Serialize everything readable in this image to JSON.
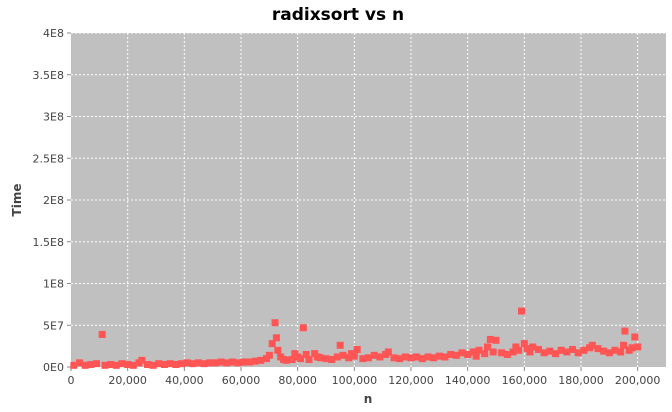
{
  "chart_data": {
    "type": "scatter",
    "title": "radixsort vs n",
    "xlabel": "n",
    "ylabel": "Time",
    "xlim": [
      0,
      210000
    ],
    "ylim": [
      0,
      400000000
    ],
    "x_ticks": [
      0,
      20000,
      40000,
      60000,
      80000,
      100000,
      120000,
      140000,
      160000,
      180000,
      200000
    ],
    "x_tick_labels": [
      "0",
      "20,000",
      "40,000",
      "60,000",
      "80,000",
      "100,000",
      "120,000",
      "140,000",
      "160,000",
      "180,000",
      "200,000"
    ],
    "y_ticks": [
      0,
      50000000,
      100000000,
      150000000,
      200000000,
      250000000,
      300000000,
      350000000,
      400000000
    ],
    "y_tick_labels": [
      "0E0",
      "5E7",
      "1E8",
      "1.5E8",
      "2E8",
      "2.5E8",
      "3E8",
      "3.5E8",
      "4E8"
    ],
    "grid": true,
    "colors": {
      "plot_background": "#c0c0c0",
      "marker": "#ff5555"
    },
    "series": [
      {
        "points": [
          [
            1000,
            2000000
          ],
          [
            3000,
            5000000
          ],
          [
            5000,
            2000000
          ],
          [
            7000,
            3000000
          ],
          [
            9000,
            4000000
          ],
          [
            11000,
            39000000
          ],
          [
            12000,
            2000000
          ],
          [
            14000,
            3000000
          ],
          [
            16000,
            2000000
          ],
          [
            18000,
            4000000
          ],
          [
            20000,
            3000000
          ],
          [
            22000,
            2000000
          ],
          [
            24000,
            5000000
          ],
          [
            25000,
            8000000
          ],
          [
            27000,
            3000000
          ],
          [
            29000,
            2000000
          ],
          [
            31000,
            4000000
          ],
          [
            33000,
            3000000
          ],
          [
            35000,
            4000000
          ],
          [
            37000,
            3000000
          ],
          [
            39000,
            4000000
          ],
          [
            41000,
            5000000
          ],
          [
            43000,
            4000000
          ],
          [
            45000,
            5000000
          ],
          [
            47000,
            4000000
          ],
          [
            49000,
            5000000
          ],
          [
            51000,
            5000000
          ],
          [
            53000,
            6000000
          ],
          [
            55000,
            5000000
          ],
          [
            57000,
            6000000
          ],
          [
            59000,
            5000000
          ],
          [
            61000,
            6000000
          ],
          [
            63000,
            6000000
          ],
          [
            65000,
            7000000
          ],
          [
            67000,
            8000000
          ],
          [
            69000,
            10000000
          ],
          [
            70000,
            14000000
          ],
          [
            71000,
            28000000
          ],
          [
            72000,
            53000000
          ],
          [
            72500,
            35000000
          ],
          [
            73000,
            20000000
          ],
          [
            74000,
            12000000
          ],
          [
            75000,
            9000000
          ],
          [
            76000,
            8000000
          ],
          [
            78000,
            9000000
          ],
          [
            79000,
            16000000
          ],
          [
            80000,
            12000000
          ],
          [
            81000,
            10000000
          ],
          [
            82000,
            47000000
          ],
          [
            83000,
            15000000
          ],
          [
            84000,
            9000000
          ],
          [
            86000,
            16000000
          ],
          [
            87000,
            12000000
          ],
          [
            88000,
            11000000
          ],
          [
            90000,
            10000000
          ],
          [
            92000,
            9000000
          ],
          [
            94000,
            12000000
          ],
          [
            95000,
            26000000
          ],
          [
            96000,
            14000000
          ],
          [
            98000,
            11000000
          ],
          [
            99000,
            16000000
          ],
          [
            100000,
            13000000
          ],
          [
            101000,
            21000000
          ],
          [
            103000,
            10000000
          ],
          [
            105000,
            11000000
          ],
          [
            107000,
            14000000
          ],
          [
            109000,
            12000000
          ],
          [
            111000,
            15000000
          ],
          [
            112000,
            18000000
          ],
          [
            114000,
            11000000
          ],
          [
            116000,
            10000000
          ],
          [
            118000,
            12000000
          ],
          [
            120000,
            11000000
          ],
          [
            122000,
            12000000
          ],
          [
            124000,
            10000000
          ],
          [
            126000,
            12000000
          ],
          [
            128000,
            11000000
          ],
          [
            130000,
            13000000
          ],
          [
            132000,
            12000000
          ],
          [
            134000,
            15000000
          ],
          [
            136000,
            14000000
          ],
          [
            138000,
            17000000
          ],
          [
            140000,
            15000000
          ],
          [
            142000,
            18000000
          ],
          [
            143000,
            13000000
          ],
          [
            144000,
            20000000
          ],
          [
            146000,
            16000000
          ],
          [
            147000,
            24000000
          ],
          [
            148000,
            33000000
          ],
          [
            149000,
            18000000
          ],
          [
            150000,
            32000000
          ],
          [
            152000,
            17000000
          ],
          [
            154000,
            15000000
          ],
          [
            156000,
            18000000
          ],
          [
            157000,
            24000000
          ],
          [
            158000,
            20000000
          ],
          [
            159000,
            67000000
          ],
          [
            160000,
            28000000
          ],
          [
            161000,
            22000000
          ],
          [
            162000,
            18000000
          ],
          [
            163000,
            24000000
          ],
          [
            165000,
            21000000
          ],
          [
            167000,
            17000000
          ],
          [
            169000,
            19000000
          ],
          [
            171000,
            16000000
          ],
          [
            173000,
            20000000
          ],
          [
            175000,
            18000000
          ],
          [
            177000,
            21000000
          ],
          [
            179000,
            17000000
          ],
          [
            181000,
            20000000
          ],
          [
            183000,
            23000000
          ],
          [
            184000,
            26000000
          ],
          [
            186000,
            22000000
          ],
          [
            188000,
            19000000
          ],
          [
            190000,
            17000000
          ],
          [
            192000,
            20000000
          ],
          [
            194000,
            18000000
          ],
          [
            195000,
            26000000
          ],
          [
            195500,
            43000000
          ],
          [
            197000,
            20000000
          ],
          [
            198000,
            23000000
          ],
          [
            199000,
            36000000
          ],
          [
            200000,
            24000000
          ]
        ]
      }
    ]
  }
}
